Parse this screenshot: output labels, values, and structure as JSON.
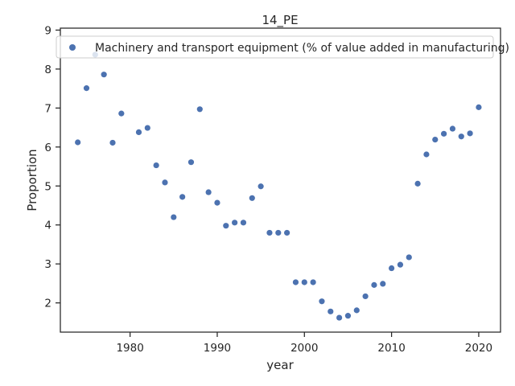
{
  "chart_data": {
    "type": "scatter",
    "title": "14_PE",
    "xlabel": "year",
    "ylabel": "Proportion",
    "xlim": [
      1972,
      2022.5
    ],
    "ylim": [
      1.25,
      9.05
    ],
    "xticks": [
      1980,
      1990,
      2000,
      2010,
      2020
    ],
    "yticks": [
      2,
      3,
      4,
      5,
      6,
      7,
      8,
      9
    ],
    "grid": false,
    "legend_position": "top",
    "marker_color": "#4c72b0",
    "series": [
      {
        "name": "Machinery and transport equipment (% of value added in manufacturing)",
        "x": [
          1974,
          1975,
          1976,
          1977,
          1978,
          1979,
          1981,
          1982,
          1983,
          1984,
          1985,
          1986,
          1987,
          1988,
          1989,
          1990,
          1991,
          1992,
          1993,
          1994,
          1995,
          1996,
          1997,
          1998,
          1999,
          2000,
          2001,
          2002,
          2003,
          2004,
          2005,
          2006,
          2007,
          2008,
          2009,
          2010,
          2011,
          2012,
          2013,
          2014,
          2015,
          2016,
          2017,
          2018,
          2019,
          2020
        ],
        "y": [
          6.12,
          7.51,
          8.37,
          7.86,
          6.11,
          6.86,
          6.38,
          6.49,
          5.53,
          5.09,
          4.2,
          4.72,
          5.61,
          6.97,
          4.84,
          4.57,
          3.98,
          4.06,
          4.06,
          4.69,
          4.99,
          3.8,
          3.8,
          3.8,
          2.53,
          2.53,
          2.53,
          2.04,
          1.78,
          1.62,
          1.67,
          1.81,
          2.17,
          2.46,
          2.49,
          2.89,
          2.98,
          3.17,
          5.06,
          5.81,
          6.19,
          6.34,
          6.47,
          6.27,
          6.35,
          7.02
        ]
      }
    ]
  }
}
